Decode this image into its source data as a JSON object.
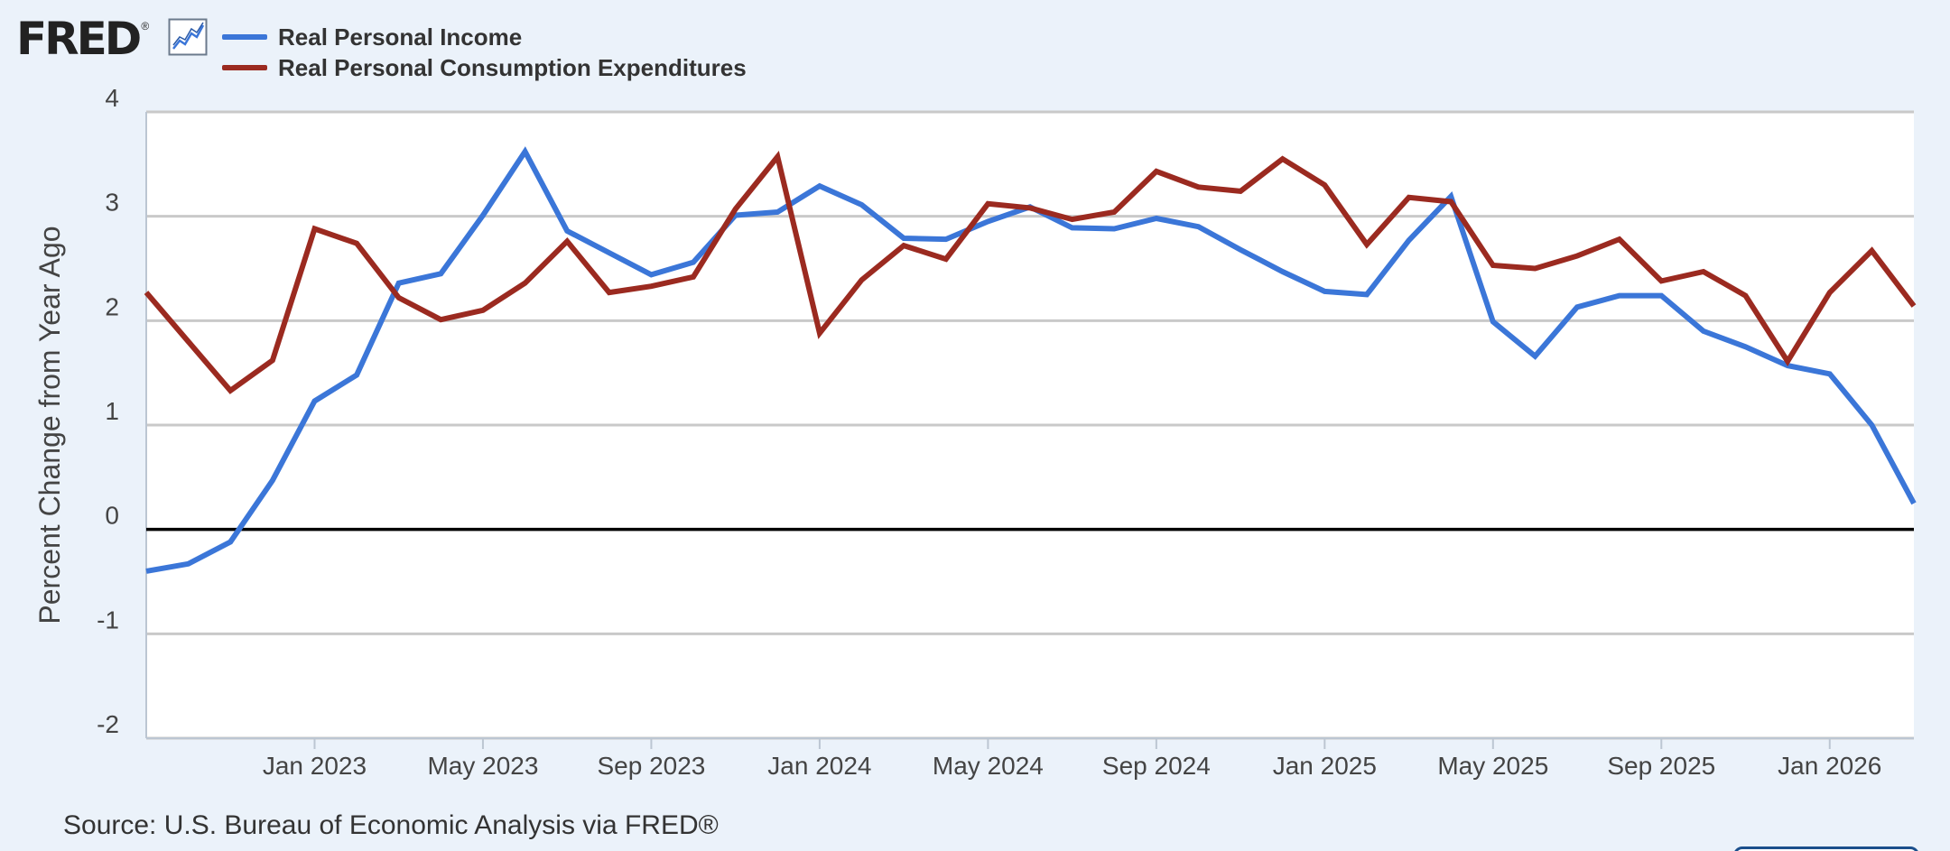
{
  "logo": {
    "text": "FRED",
    "mark": "®",
    "icon": "line-chart-icon"
  },
  "colors": {
    "background": "#ebf2fa",
    "plot_background": "#ffffff",
    "grid": "#c9c9c9",
    "zero_line": "#000000"
  },
  "source": "Source: U.S. Bureau of Economic Analysis via FRED®",
  "chart_data": {
    "type": "line",
    "title": "",
    "xlabel": "",
    "ylabel": "Percent Change from Year Ago",
    "ylim": [
      -2,
      4
    ],
    "y_ticks": [
      4,
      3,
      2,
      1,
      0,
      -1,
      -2
    ],
    "y_tick_labels": [
      "4",
      "3",
      "2",
      "1",
      "0",
      "-1",
      "-2"
    ],
    "x_range": [
      "2022-09",
      "2026-03"
    ],
    "x_ticks": [
      "2023-01",
      "2023-05",
      "2023-09",
      "2024-01",
      "2024-05",
      "2024-09",
      "2025-01",
      "2025-05",
      "2025-09",
      "2026-01"
    ],
    "x_tick_labels": [
      "Jan 2023",
      "May 2023",
      "Sep 2023",
      "Jan 2024",
      "May 2024",
      "Sep 2024",
      "Jan 2025",
      "May 2025",
      "Sep 2025",
      "Jan 2026"
    ],
    "grid": true,
    "legend": "top-left",
    "x": [
      "2022-09",
      "2022-10",
      "2022-11",
      "2022-12",
      "2023-01",
      "2023-02",
      "2023-03",
      "2023-04",
      "2023-05",
      "2023-06",
      "2023-07",
      "2023-08",
      "2023-09",
      "2023-10",
      "2023-11",
      "2023-12",
      "2024-01",
      "2024-02",
      "2024-03",
      "2024-04",
      "2024-05",
      "2024-06",
      "2024-07",
      "2024-08",
      "2024-09",
      "2024-10",
      "2024-11",
      "2024-12",
      "2025-01",
      "2025-02",
      "2025-03",
      "2025-04",
      "2025-05",
      "2025-06",
      "2025-07",
      "2025-08",
      "2025-09",
      "2025-10",
      "2025-11",
      "2025-12",
      "2026-01",
      "2026-02",
      "2026-03"
    ],
    "series": [
      {
        "name": "Real Personal Income",
        "color": "#3b76d8",
        "values": [
          -0.4,
          -0.33,
          -0.12,
          0.47,
          1.23,
          1.48,
          2.36,
          2.45,
          3.01,
          3.62,
          2.86,
          2.65,
          2.44,
          2.56,
          3.01,
          3.04,
          3.29,
          3.11,
          2.79,
          2.78,
          2.95,
          3.09,
          2.89,
          2.88,
          2.98,
          2.9,
          2.68,
          2.47,
          2.28,
          2.25,
          2.77,
          3.19,
          1.99,
          1.66,
          2.13,
          2.24,
          2.24,
          1.9,
          1.75,
          1.57,
          1.49,
          1.0,
          0.25
        ]
      },
      {
        "name": "Real Personal Consumption Expenditures",
        "color": "#9b2a20",
        "values": [
          2.27,
          1.8,
          1.33,
          1.62,
          2.88,
          2.74,
          2.22,
          2.01,
          2.1,
          2.36,
          2.76,
          2.27,
          2.33,
          2.42,
          3.07,
          3.57,
          1.88,
          2.39,
          2.72,
          2.59,
          3.12,
          3.08,
          2.97,
          3.04,
          3.43,
          3.28,
          3.24,
          3.55,
          3.3,
          2.73,
          3.18,
          3.14,
          2.53,
          2.5,
          2.62,
          2.78,
          2.38,
          2.47,
          2.24,
          1.61,
          2.27,
          2.67,
          2.14
        ]
      }
    ]
  }
}
